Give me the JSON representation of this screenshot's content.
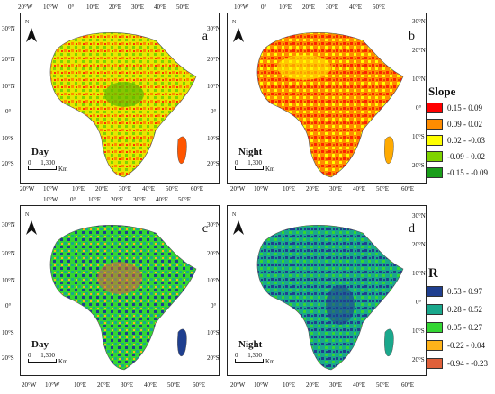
{
  "panels": [
    {
      "letter": "a",
      "period": "Day"
    },
    {
      "letter": "b",
      "period": "Night"
    },
    {
      "letter": "c",
      "period": "Day"
    },
    {
      "letter": "d",
      "period": "Night"
    }
  ],
  "north_label": "N",
  "scale": {
    "zero": "0",
    "dist": "1,300",
    "unit": "Km"
  },
  "lon_ticks": [
    "20°W",
    "10°W",
    "0°",
    "10°E",
    "20°E",
    "30°E",
    "40°E",
    "50°E",
    "60°E"
  ],
  "lat_ticks": [
    "30°N",
    "20°N",
    "10°N",
    "0°",
    "10°S",
    "20°S"
  ],
  "slope_legend": {
    "title": "Slope",
    "items": [
      {
        "label": "0.15 - 0.09",
        "color": "#ff0000"
      },
      {
        "label": "0.09 - 0.02",
        "color": "#ff8c00"
      },
      {
        "label": "0.02 - -0.03",
        "color": "#ffff00"
      },
      {
        "label": "-0.09 - 0.02",
        "color": "#7fd400"
      },
      {
        "label": "-0.15 - -0.09",
        "color": "#1a9e1a"
      }
    ]
  },
  "r_legend": {
    "title": "R",
    "items": [
      {
        "label": "0.53 - 0.97",
        "color": "#1f3f8f"
      },
      {
        "label": "0.28 - 0.52",
        "color": "#1aa88c"
      },
      {
        "label": "0.05 - 0.27",
        "color": "#33d633"
      },
      {
        "label": "-0.22 - 0.04",
        "color": "#ffb31a"
      },
      {
        "label": "-0.94 - -0.23",
        "color": "#e0603a"
      }
    ]
  }
}
